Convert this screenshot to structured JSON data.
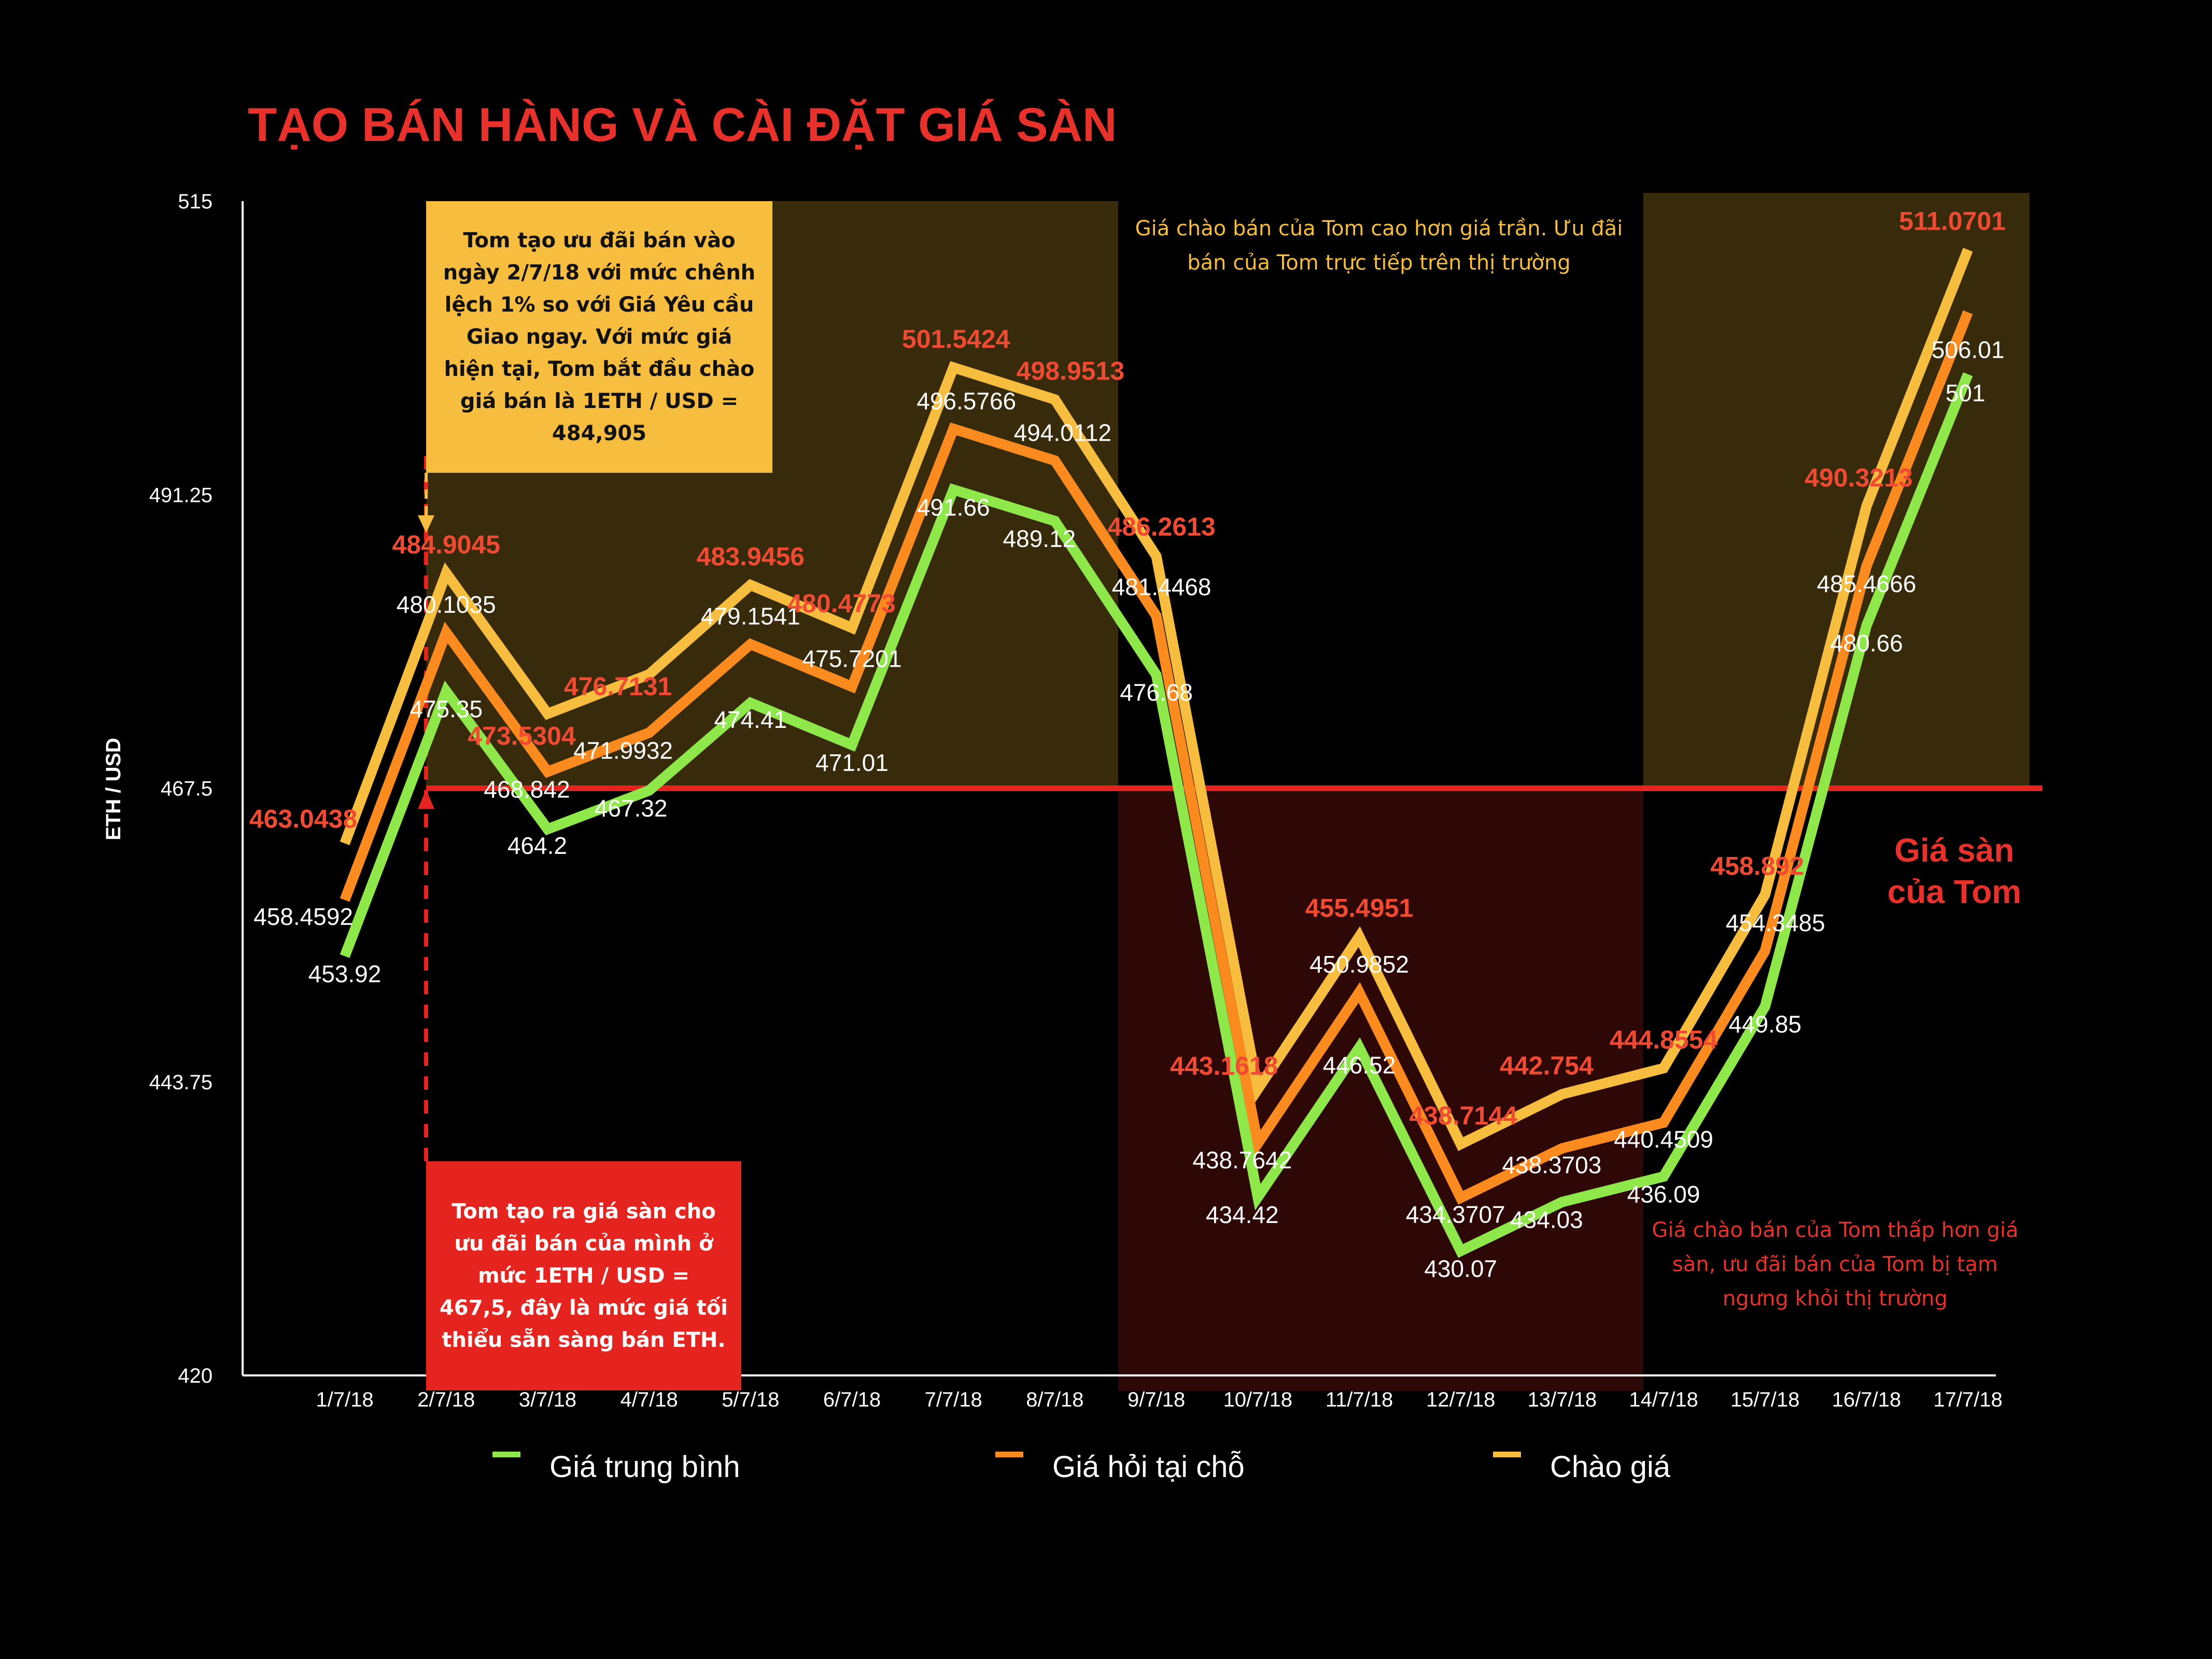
{
  "colors": {
    "background": "#000000",
    "title": "#e8312b",
    "avg": "#8ee84a",
    "ask": "#fb8b1e",
    "offer": "#f6bd3e",
    "floor": "#e52420",
    "offer_label": "#f04a32"
  },
  "annotations": {
    "offer_box": "Tom tạo ưu đãi bán vào ngày 2/7/18 với mức chênh lệch 1% so với Giá Yêu cầu Giao ngay. Với mức giá hiện tại, Tom bắt đầu chào giá bán là 1ETH / USD = 484,905",
    "floor_box": "Tom tạo ra giá sàn cho ưu đãi bán của mình ở mức 1ETH / USD = 467,5, đây là mức giá tối thiểu sẵn sàng bán ETH.",
    "note_above": "Giá chào bán của Tom cao hơn giá trần. Ưu đãi bán của Tom trực tiếp trên thị trường",
    "note_below": "Giá chào bán của Tom thấp hơn giá sàn, ưu đãi bán của Tom bị tạm ngưng khỏi thị trường",
    "floor_label_1": "Giá sàn",
    "floor_label_2": "của Tom"
  },
  "chart_data": {
    "type": "line",
    "title": "TẠO BÁN HÀNG VÀ CÀI ĐẶT GIÁ SÀN",
    "ylabel": "ETH / USD",
    "xlabel": "",
    "ylim": [
      420,
      515
    ],
    "yticks": [
      "515",
      "491.25",
      "467.5",
      "443.75",
      "420"
    ],
    "ytick_values": [
      515,
      491.25,
      467.5,
      443.75,
      420
    ],
    "categories": [
      "1/7/18",
      "2/7/18",
      "3/7/18",
      "4/7/18",
      "5/7/18",
      "6/7/18",
      "7/7/18",
      "8/7/18",
      "9/7/18",
      "10/7/18",
      "11/7/18",
      "12/7/18",
      "13/7/18",
      "14/7/18",
      "15/7/18",
      "16/7/18",
      "17/7/18"
    ],
    "floor_price": 467.5,
    "series": [
      {
        "name": "Giá trung bình",
        "color": "#8ee84a",
        "values": [
          453.92,
          475.35,
          464.2,
          467.32,
          474.41,
          471.01,
          491.66,
          489.12,
          476.68,
          434.42,
          446.52,
          430.07,
          434.03,
          436.09,
          449.85,
          480.66,
          501
        ],
        "labels": [
          "453.92",
          "475.35",
          "464.2",
          "467.32",
          "474.41",
          "471.01",
          "491.66",
          "489.12",
          "476.68",
          "434.42",
          "446.52",
          "430.07",
          "434.03",
          "436.09",
          "449.85",
          "480.66",
          "501"
        ]
      },
      {
        "name": "Giá hỏi tại chỗ",
        "color": "#fb8b1e",
        "values": [
          458.4592,
          480.1035,
          468.842,
          471.9932,
          479.1541,
          475.7201,
          496.5766,
          494.0112,
          481.4468,
          438.7642,
          450.9852,
          434.3707,
          438.3703,
          440.4509,
          454.3485,
          485.4666,
          506.01
        ],
        "labels": [
          "458.4592",
          "480.1035",
          "468.842",
          "471.9932",
          "479.1541",
          "475.7201",
          "496.5766",
          "494.0112",
          "481.4468",
          "438.7642",
          "450.9852",
          "434.3707",
          "438.3703",
          "440.4509",
          "454.3485",
          "485.4666",
          "506.01"
        ]
      },
      {
        "name": "Chào giá",
        "color": "#f6bd3e",
        "values": [
          463.0438,
          484.9045,
          473.5304,
          476.7131,
          483.9456,
          480.4773,
          501.5424,
          498.9513,
          486.2613,
          443.1618,
          455.4951,
          438.7144,
          442.754,
          444.8554,
          458.892,
          490.3213,
          511.0701
        ],
        "labels": [
          "463.0438",
          "484.9045",
          "473.5304",
          "476.7131",
          "483.9456",
          "480.4773",
          "501.5424",
          "498.9513",
          "486.2613",
          "443.1618",
          "455.4951",
          "438.7144",
          "442.754",
          "444.8554",
          "458.892",
          "490.3213",
          "511.0701"
        ]
      }
    ],
    "legend": [
      "Giá trung bình",
      "Giá hỏi tại chỗ",
      "Chào giá"
    ],
    "legend_position": "bottom",
    "grid": false
  }
}
